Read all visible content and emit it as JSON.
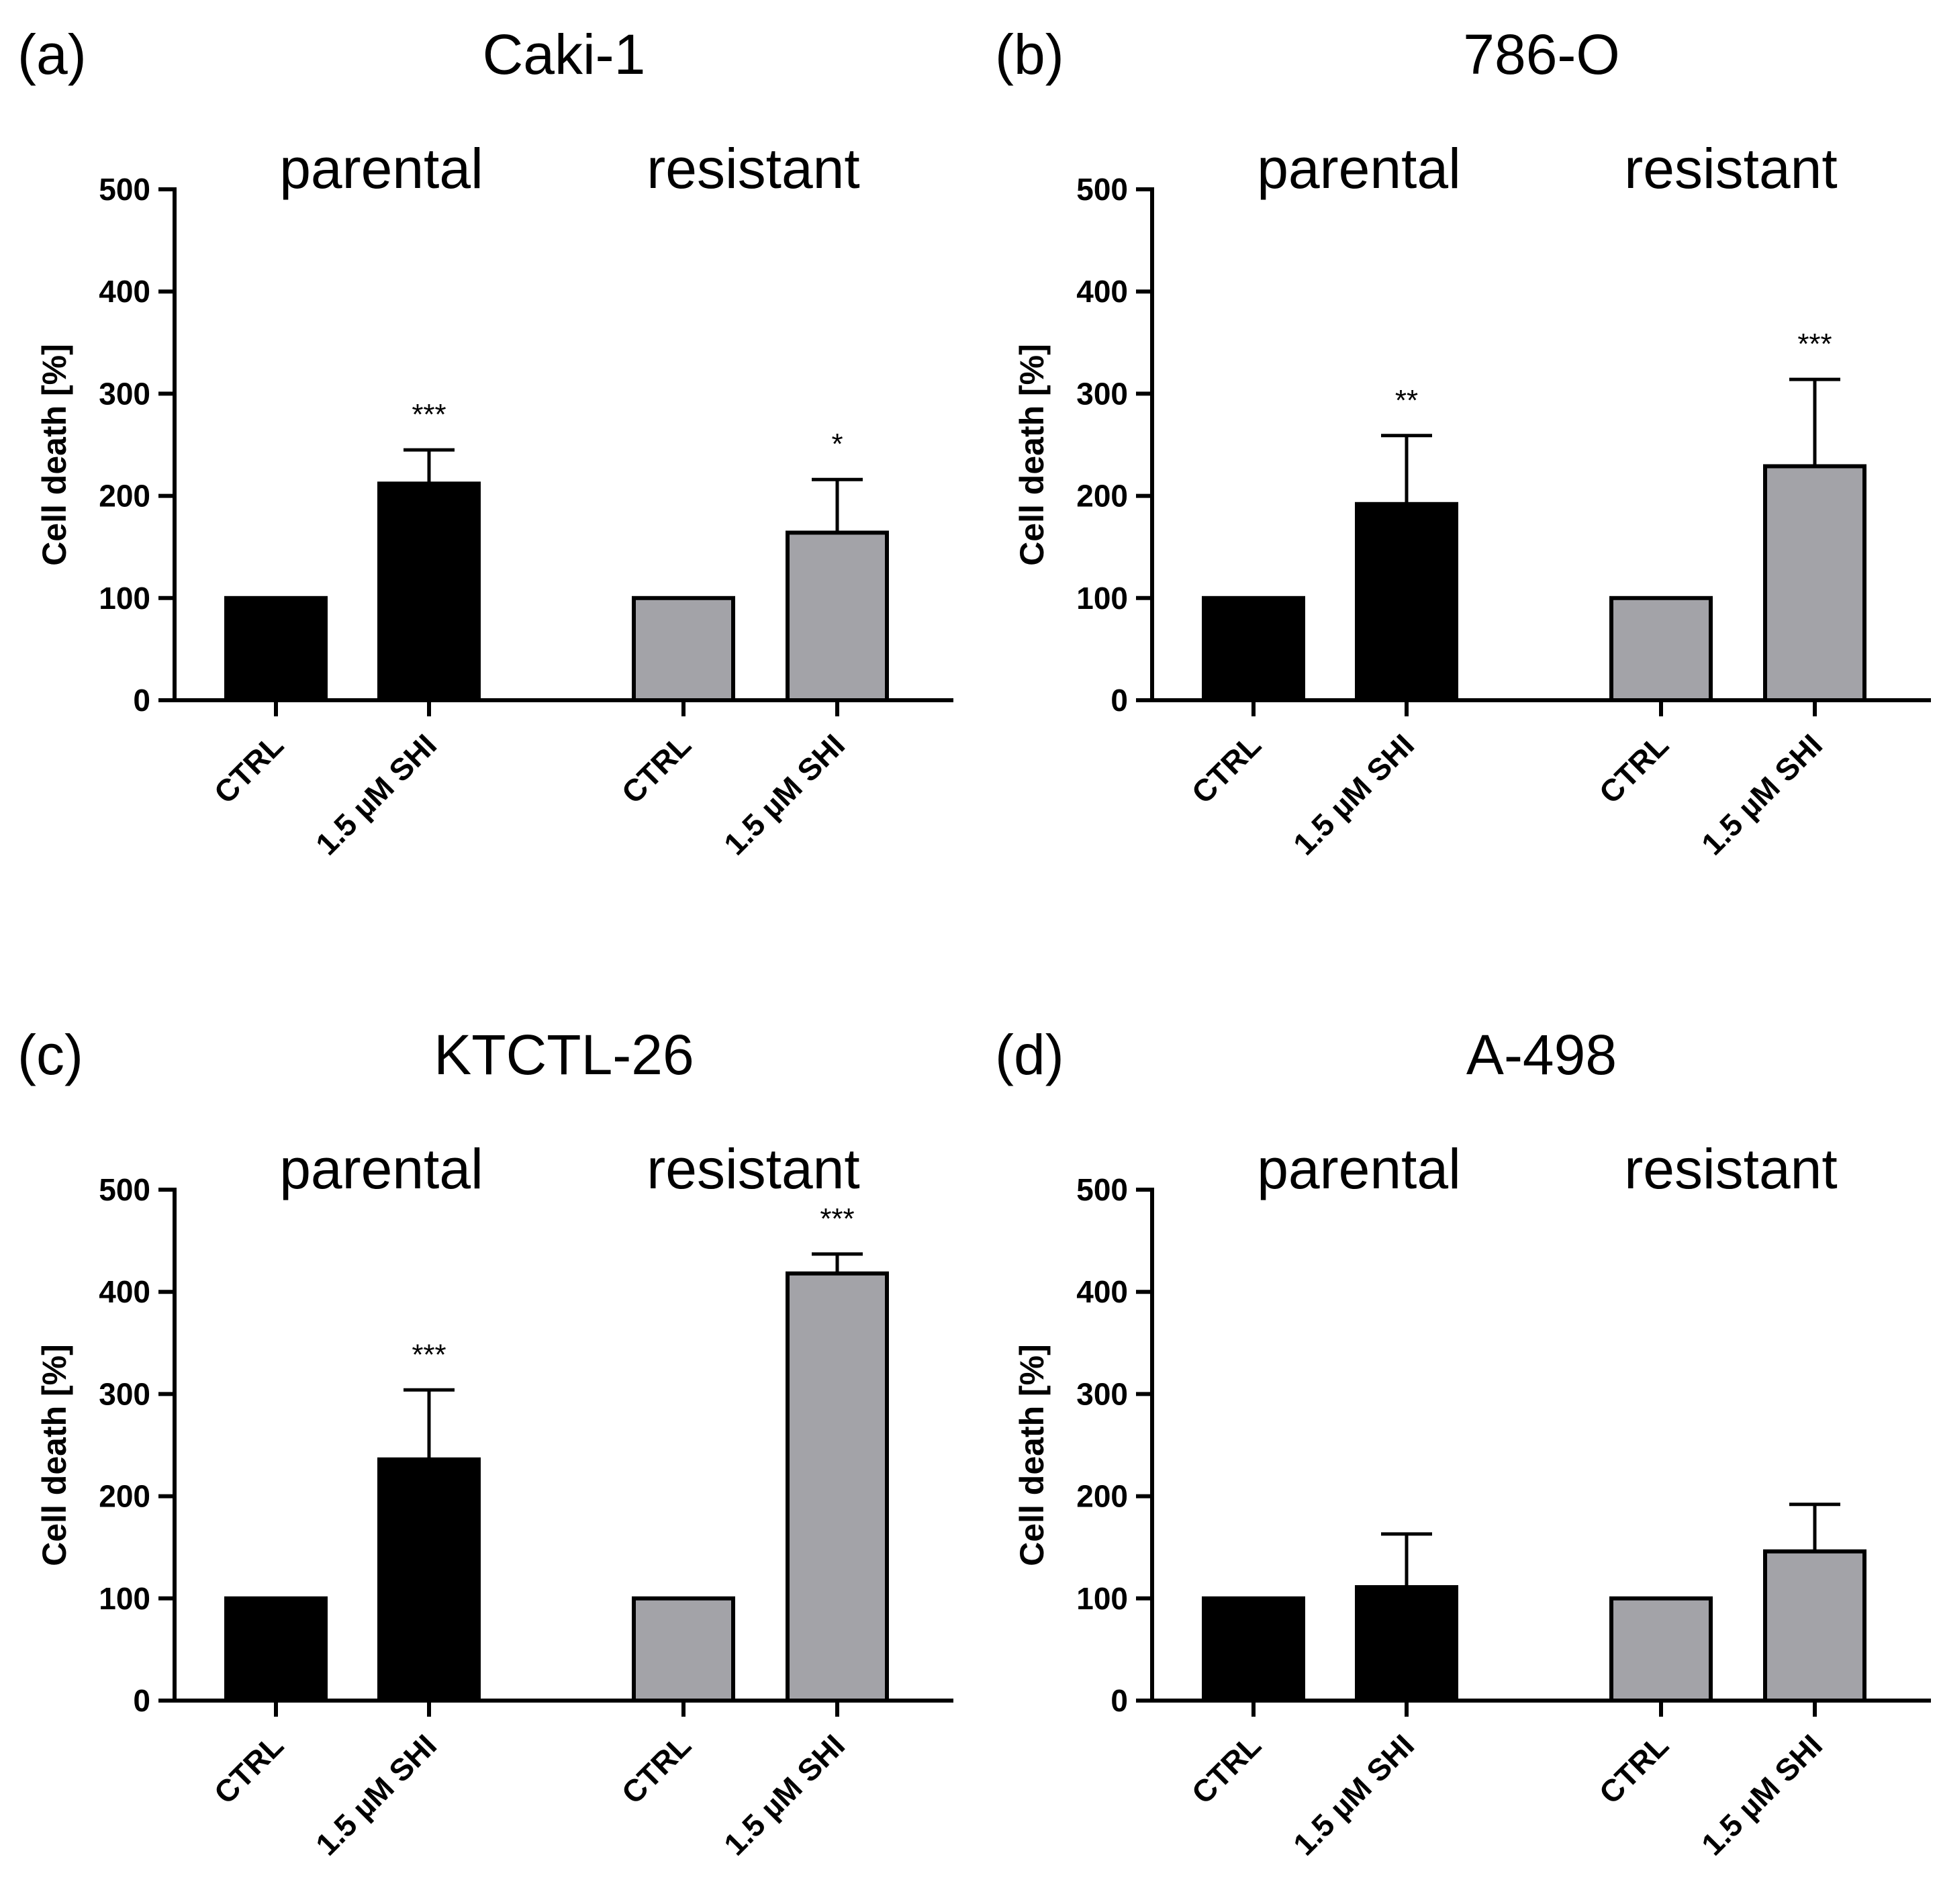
{
  "figure": {
    "colors": {
      "parental": "#000000",
      "resistant": "#a3a3a8",
      "stroke": "#000000"
    }
  },
  "chart_data": [
    {
      "panel": "(a)",
      "title": "Caki-1",
      "type": "bar",
      "groups": [
        "parental",
        "resistant"
      ],
      "categories": [
        "CTRL",
        "1.5 µM SHI",
        "CTRL",
        "1.5 µM SHI"
      ],
      "values": [
        100,
        212,
        100,
        164
      ],
      "errors": [
        0,
        33,
        0,
        52
      ],
      "significance": [
        "",
        "***",
        "",
        "*"
      ],
      "ylabel": "Cell death [%]",
      "yticks": [
        0,
        100,
        200,
        300,
        400,
        500
      ],
      "ylim": [
        0,
        500
      ]
    },
    {
      "panel": "(b)",
      "title": "786-O",
      "type": "bar",
      "groups": [
        "parental",
        "resistant"
      ],
      "categories": [
        "CTRL",
        "1.5 µM SHI",
        "CTRL",
        "1.5 µM SHI"
      ],
      "values": [
        100,
        192,
        100,
        229
      ],
      "errors": [
        0,
        67,
        0,
        85
      ],
      "significance": [
        "",
        "**",
        "",
        "***"
      ],
      "ylabel": "Cell death [%]",
      "yticks": [
        0,
        100,
        200,
        300,
        400,
        500
      ],
      "ylim": [
        0,
        500
      ]
    },
    {
      "panel": "(c)",
      "title": "KTCTL-26",
      "type": "bar",
      "groups": [
        "parental",
        "resistant"
      ],
      "categories": [
        "CTRL",
        "1.5 µM SHI",
        "CTRL",
        "1.5 µM SHI"
      ],
      "values": [
        100,
        236,
        100,
        418
      ],
      "errors": [
        0,
        68,
        0,
        19
      ],
      "significance": [
        "",
        "***",
        "",
        "***"
      ],
      "ylabel": "Cell death [%]",
      "yticks": [
        0,
        100,
        200,
        300,
        400,
        500
      ],
      "ylim": [
        0,
        500
      ]
    },
    {
      "panel": "(d)",
      "title": "A-498",
      "type": "bar",
      "groups": [
        "parental",
        "resistant"
      ],
      "categories": [
        "CTRL",
        "1.5 µM SHI",
        "CTRL",
        "1.5 µM SHI"
      ],
      "values": [
        100,
        111,
        100,
        146
      ],
      "errors": [
        0,
        52,
        0,
        46
      ],
      "significance": [
        "",
        "",
        "",
        ""
      ],
      "ylabel": "Cell death [%]",
      "yticks": [
        0,
        100,
        200,
        300,
        400,
        500
      ],
      "ylim": [
        0,
        500
      ]
    }
  ]
}
